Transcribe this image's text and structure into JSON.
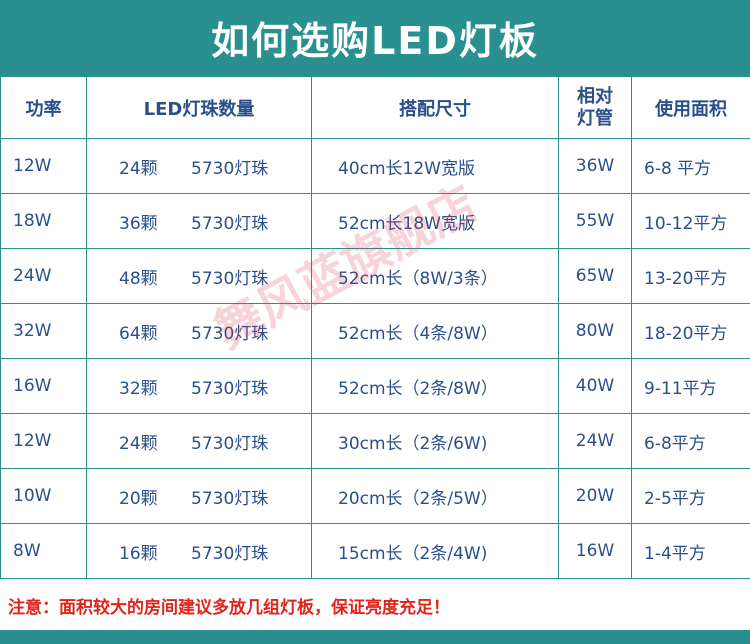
{
  "title": "如何选购LED灯板",
  "headers": {
    "power": "功率",
    "led_count": "LED灯珠数量",
    "size": "搭配尺寸",
    "lamp_line1": "相对",
    "lamp_line2": "灯管",
    "area": "使用面积"
  },
  "rows": [
    {
      "power": "12W",
      "count": "24颗",
      "chip": "5730灯珠",
      "size": "40cm长12W宽版",
      "lamp": "36W",
      "area": "6-8 平方"
    },
    {
      "power": "18W",
      "count": "36颗",
      "chip": "5730灯珠",
      "size": "52cm长18W宽版",
      "lamp": "55W",
      "area": "10-12平方"
    },
    {
      "power": "24W",
      "count": "48颗",
      "chip": "5730灯珠",
      "size": "52cm长（8W/3条）",
      "lamp": "65W",
      "area": "13-20平方"
    },
    {
      "power": "32W",
      "count": "64颗",
      "chip": "5730灯珠",
      "size": "52cm长（4条/8W）",
      "lamp": "80W",
      "area": "18-20平方"
    },
    {
      "power": "16W",
      "count": "32颗",
      "chip": "5730灯珠",
      "size": "52cm长（2条/8W）",
      "lamp": "40W",
      "area": "9-11平方"
    },
    {
      "power": "12W",
      "count": "24颗",
      "chip": "5730灯珠",
      "size": "30cm长（2条/6W)",
      "lamp": "24W",
      "area": "6-8平方"
    },
    {
      "power": "10W",
      "count": "20颗",
      "chip": "5730灯珠",
      "size": "20cm长（2条/5W）",
      "lamp": "20W",
      "area": "2-5平方"
    },
    {
      "power": "8W",
      "count": "16颗",
      "chip": "5730灯珠",
      "size": "15cm长（2条/4W)",
      "lamp": "16W",
      "area": "1-4平方"
    }
  ],
  "note": "注意：面积较大的房间建议多放几组灯板，保证亮度充足！",
  "watermark": "舞风蓝旗舰店",
  "colors": {
    "accent": "#2a8f8f",
    "text": "#2b4f8a",
    "note": "#e0241b"
  }
}
